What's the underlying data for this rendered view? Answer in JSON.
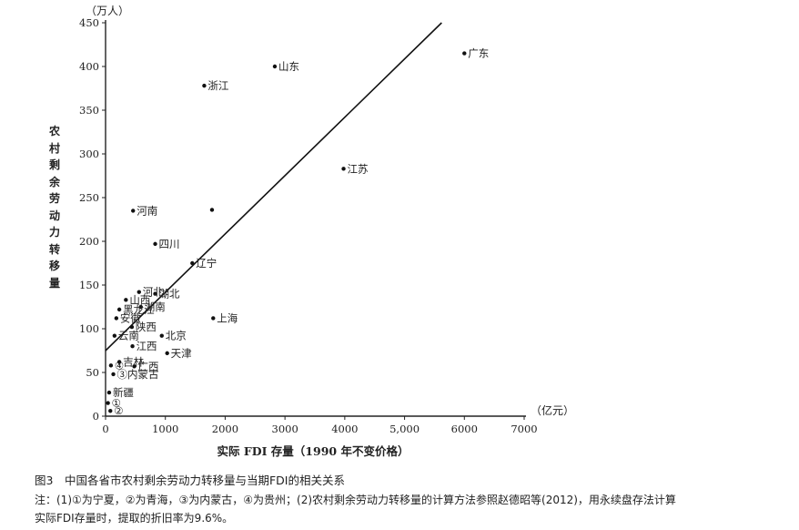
{
  "chart_data": {
    "type": "scatter",
    "y_unit": "（万人）",
    "x_unit": "（亿元）",
    "xlabel": "实际 FDI 存量（1990 年不变价格）",
    "ylabel": "农村剩余劳动力转移量",
    "xlim": [
      0,
      7000
    ],
    "ylim": [
      0,
      450
    ],
    "x_ticks": [
      "0",
      "1000",
      "2000",
      "3000",
      "4000",
      "5,000",
      "6000",
      "7000"
    ],
    "y_ticks": [
      "0",
      "50",
      "100",
      "150",
      "200",
      "250",
      "300",
      "350",
      "400",
      "450"
    ],
    "points": [
      {
        "label": "广东",
        "x": 6000,
        "y": 415
      },
      {
        "label": "山东",
        "x": 2830,
        "y": 400
      },
      {
        "label": "浙江",
        "x": 1650,
        "y": 378
      },
      {
        "label": "江苏",
        "x": 3980,
        "y": 283
      },
      {
        "label": "河南",
        "x": 460,
        "y": 235
      },
      {
        "label": "",
        "x": 1780,
        "y": 236
      },
      {
        "label": "四川",
        "x": 830,
        "y": 197
      },
      {
        "label": "辽宁",
        "x": 1450,
        "y": 175
      },
      {
        "label": "河北",
        "x": 560,
        "y": 142
      },
      {
        "label": "山西",
        "x": 340,
        "y": 133
      },
      {
        "label": "湖北",
        "x": 830,
        "y": 140
      },
      {
        "label": "黑龙江",
        "x": 230,
        "y": 122
      },
      {
        "label": "湖南",
        "x": 590,
        "y": 125
      },
      {
        "label": "安徽",
        "x": 180,
        "y": 112
      },
      {
        "label": "上海",
        "x": 1800,
        "y": 112
      },
      {
        "label": "陕西",
        "x": 440,
        "y": 102
      },
      {
        "label": "云南",
        "x": 150,
        "y": 92
      },
      {
        "label": "北京",
        "x": 940,
        "y": 92
      },
      {
        "label": "江西",
        "x": 450,
        "y": 80
      },
      {
        "label": "天津",
        "x": 1030,
        "y": 72
      },
      {
        "label": "吉林",
        "x": 230,
        "y": 62
      },
      {
        "label": "广西",
        "x": 480,
        "y": 57
      },
      {
        "label": "④",
        "x": 90,
        "y": 58
      },
      {
        "label": "③内蒙古",
        "x": 130,
        "y": 48
      },
      {
        "label": "新疆",
        "x": 60,
        "y": 27
      },
      {
        "label": "①",
        "x": 40,
        "y": 15
      },
      {
        "label": "②",
        "x": 80,
        "y": 6
      }
    ],
    "fit_line": {
      "x": [
        0,
        5620
      ],
      "y": [
        75,
        450
      ]
    }
  },
  "caption": "图3　中国各省市农村剩余劳动力转移量与当期FDI的相关关系",
  "note_line1": "注：(1)①为宁夏，②为青海，③为内蒙古，④为贵州；(2)农村剩余劳动力转移量的计算方法参照赵德昭等(2012)，用永续盘存法计算",
  "note_line2": "实际FDI存量时，提取的折旧率为9.6%。"
}
